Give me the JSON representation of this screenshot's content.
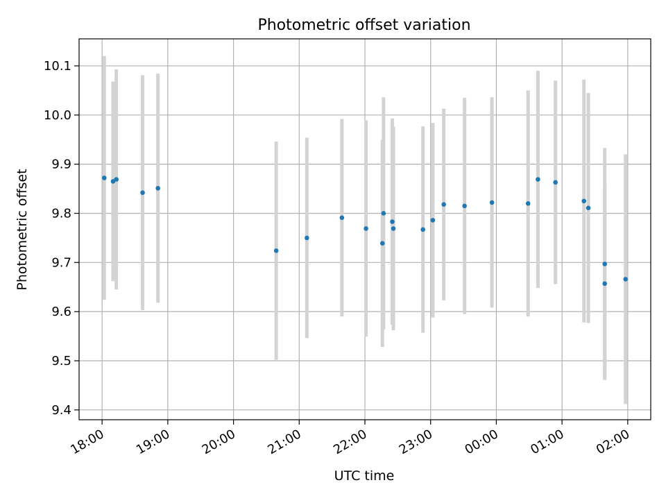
{
  "chart_data": {
    "type": "scatter",
    "title": "Photometric offset variation",
    "xlabel": "UTC time",
    "ylabel": "Photometric offset",
    "xlim": [
      "17:39",
      "02:21"
    ],
    "ylim": [
      9.38,
      10.155
    ],
    "x_tick_labels": [
      "18:00",
      "19:00",
      "20:00",
      "21:00",
      "22:00",
      "23:00",
      "00:00",
      "01:00",
      "02:00"
    ],
    "y_tick_labels": [
      "9.4",
      "9.5",
      "9.6",
      "9.7",
      "9.8",
      "9.9",
      "10.0",
      "10.1"
    ],
    "grid": true,
    "point_color": "#1f77b4",
    "errorbar_color": "#d3d3d3",
    "series": [
      {
        "points": [
          {
            "t": "18:02",
            "y": 9.872,
            "yerr": 0.248
          },
          {
            "t": "18:10",
            "y": 9.865,
            "yerr": 0.203
          },
          {
            "t": "18:13",
            "y": 9.869,
            "yerr": 0.224
          },
          {
            "t": "18:37",
            "y": 9.842,
            "yerr": 0.239
          },
          {
            "t": "18:51",
            "y": 9.851,
            "yerr": 0.233
          },
          {
            "t": "20:39",
            "y": 9.724,
            "yerr": 0.222
          },
          {
            "t": "21:07",
            "y": 9.75,
            "yerr": 0.204
          },
          {
            "t": "21:39",
            "y": 9.791,
            "yerr": 0.201
          },
          {
            "t": "22:01",
            "y": 9.769,
            "yerr": 0.22
          },
          {
            "t": "22:16",
            "y": 9.739,
            "yerr": 0.211
          },
          {
            "t": "22:17",
            "y": 9.8,
            "yerr": 0.236
          },
          {
            "t": "22:25",
            "y": 9.783,
            "yerr": 0.21
          },
          {
            "t": "22:26",
            "y": 9.769,
            "yerr": 0.207
          },
          {
            "t": "22:53",
            "y": 9.767,
            "yerr": 0.21
          },
          {
            "t": "23:02",
            "y": 9.786,
            "yerr": 0.198
          },
          {
            "t": "23:12",
            "y": 9.818,
            "yerr": 0.195
          },
          {
            "t": "23:31",
            "y": 9.815,
            "yerr": 0.22
          },
          {
            "t": "23:56",
            "y": 9.822,
            "yerr": 0.214
          },
          {
            "t": "00:29",
            "y": 9.82,
            "yerr": 0.23
          },
          {
            "t": "00:38",
            "y": 9.869,
            "yerr": 0.221
          },
          {
            "t": "00:54",
            "y": 9.863,
            "yerr": 0.207
          },
          {
            "t": "01:20",
            "y": 9.825,
            "yerr": 0.247
          },
          {
            "t": "01:24",
            "y": 9.811,
            "yerr": 0.234
          },
          {
            "t": "01:39",
            "y": 9.697,
            "yerr": 0.236
          },
          {
            "t": "01:39",
            "y": 9.657,
            "yerr": 0.196
          },
          {
            "t": "01:58",
            "y": 9.666,
            "yerr": 0.254
          }
        ]
      }
    ]
  }
}
